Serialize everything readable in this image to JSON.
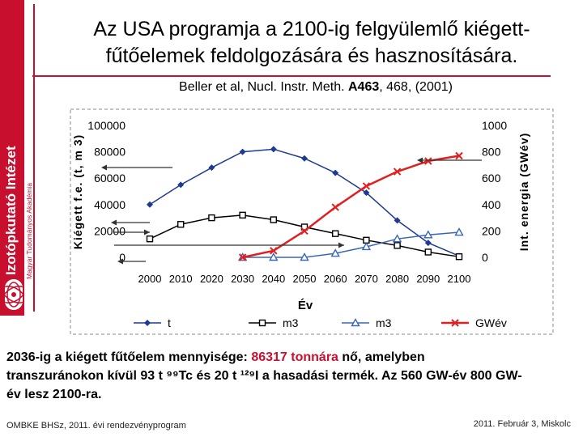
{
  "header": {
    "title_line1": "Az USA programja a 2100-ig felgyülemlő kiégett-",
    "title_line2": "fűtőelemek feldolgozására és hasznosítására.",
    "citation_pre": "Beller et al, Nucl. Instr. Meth. ",
    "citation_bold": "A463",
    "citation_post": ", 468, (2001)"
  },
  "sidebar": {
    "institute": "Izotópkutató Intézet",
    "academy": "Magyar Tudományos Akadémia"
  },
  "chart_data": {
    "type": "line",
    "title": "",
    "x": [
      2000,
      2010,
      2020,
      2030,
      2040,
      2050,
      2060,
      2070,
      2080,
      2090,
      2100
    ],
    "xlabel": "Év",
    "ylabel_left": "Kiégett f.e. (t, m 3)",
    "ylabel_right": "Int. energia (GWév)",
    "ylim_left": [
      0,
      100000
    ],
    "ylim_right": [
      0,
      1000
    ],
    "yticks_left": [
      "0",
      "20000",
      "40000",
      "60000",
      "80000",
      "100000"
    ],
    "yticks_right": [
      "0",
      "200",
      "400",
      "600",
      "800",
      "1000"
    ],
    "legend_position": "bottom",
    "series": [
      {
        "name": "t",
        "axis": "left",
        "color": "#1f3a93",
        "marker": "diamond",
        "x": [
          2000,
          2010,
          2020,
          2030,
          2040,
          2050,
          2060,
          2070,
          2080,
          2090,
          2100
        ],
        "values": [
          40000,
          55000,
          68000,
          80000,
          82000,
          75000,
          64000,
          49000,
          28000,
          11000,
          1000
        ]
      },
      {
        "name": "m3",
        "axis": "left",
        "color": "#000000",
        "marker": "square",
        "x": [
          2000,
          2010,
          2020,
          2030,
          2040,
          2050,
          2060,
          2070,
          2080,
          2090,
          2100
        ],
        "values": [
          14000,
          25000,
          30000,
          32000,
          28500,
          23000,
          18000,
          13000,
          9000,
          4000,
          500
        ]
      },
      {
        "name": "m3",
        "axis": "left",
        "color": "#3a66b8",
        "marker": "triangle",
        "x": [
          2030,
          2040,
          2050,
          2060,
          2070,
          2080,
          2090,
          2100
        ],
        "values": [
          0,
          0,
          0,
          3000,
          8000,
          14000,
          17000,
          19000
        ]
      },
      {
        "name": "GWév",
        "axis": "right",
        "color": "#e02020",
        "marker": "x",
        "x": [
          2030,
          2040,
          2050,
          2060,
          2070,
          2080,
          2090,
          2100
        ],
        "values": [
          0,
          50,
          200,
          380,
          540,
          650,
          730,
          770
        ]
      }
    ]
  },
  "body_text": {
    "l1_pre": "2036-ig a kiégett fűtőelem mennyisége: ",
    "l1_hl": "86317 tonnára",
    "l1_post": " nő, amelyben",
    "l2": "transzuránokon kívül 93 t ⁹⁹Tc és 20 t ¹²⁹I a hasadási termék. Az 560 GW-év 800 GW-",
    "l3": "év lesz 2100-ra."
  },
  "footer": {
    "left": "OMBKE BHSz, 2011. évi rendezvényprogram",
    "right": "2011. Február 3, Miskolc"
  }
}
